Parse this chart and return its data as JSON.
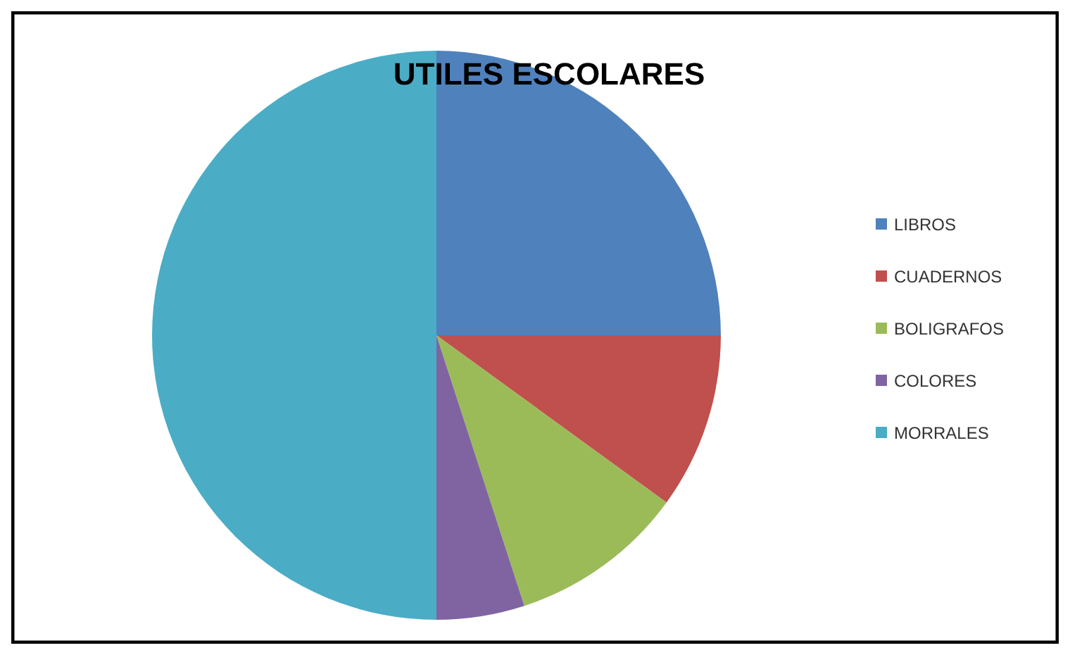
{
  "chart_data": {
    "type": "pie",
    "title": "UTILES ESCOLARES",
    "categories": [
      "LIBROS",
      "CUADERNOS",
      "BOLIGRAFOS",
      "COLORES",
      "MORRALES"
    ],
    "values": [
      25,
      10,
      10,
      5,
      50
    ],
    "colors": [
      "#4f81bd",
      "#c0504d",
      "#9bbb59",
      "#8064a2",
      "#4bacc6"
    ],
    "legend": "right"
  }
}
